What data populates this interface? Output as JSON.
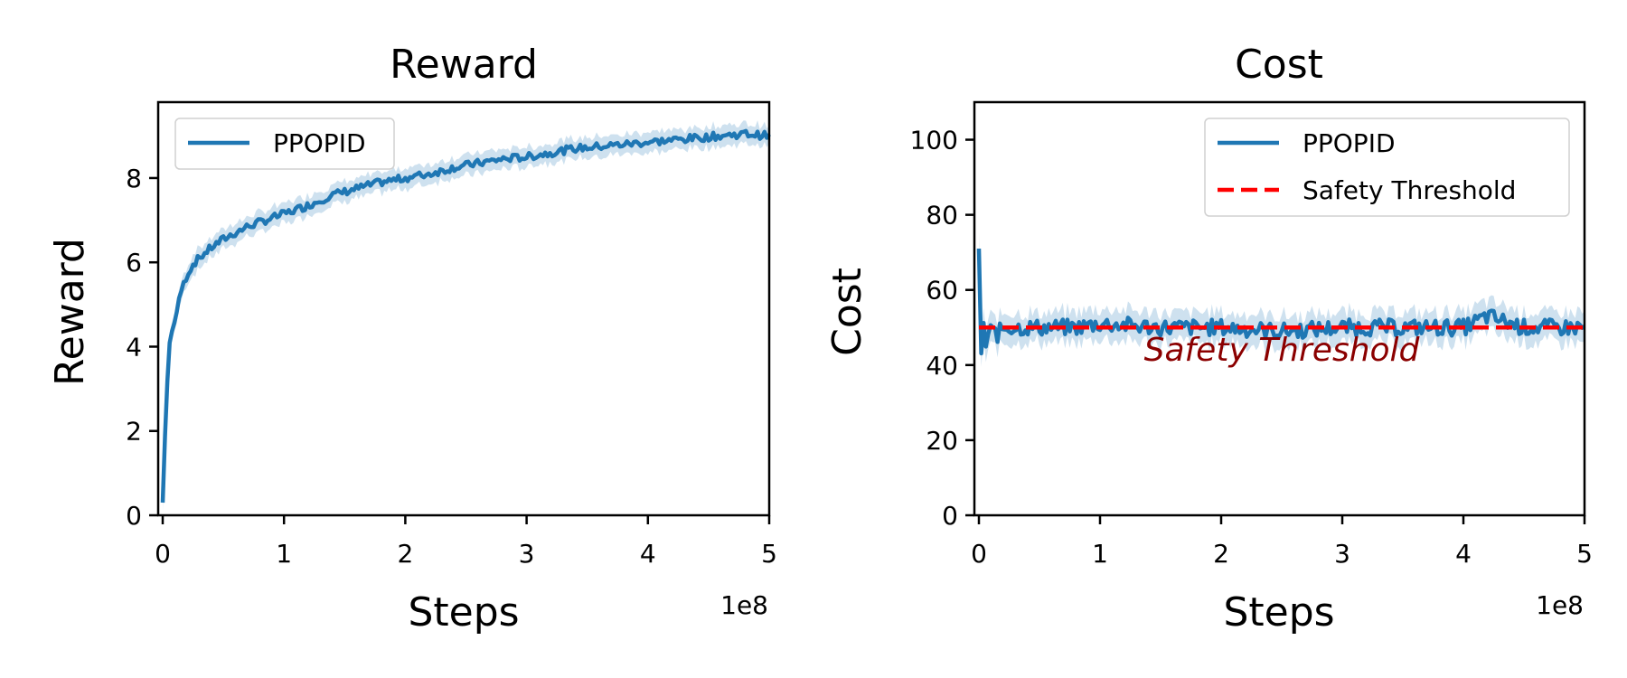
{
  "chart_data": [
    {
      "type": "line",
      "title": "Reward",
      "xlabel": "Steps",
      "ylabel": "Reward",
      "x_offset_label": "1e8",
      "xlim": [
        0,
        5
      ],
      "ylim": [
        0,
        9.8
      ],
      "xticks": [
        "0",
        "1",
        "2",
        "3",
        "4",
        "5"
      ],
      "yticks": [
        "0",
        "2",
        "4",
        "6",
        "8"
      ],
      "legend": {
        "placement": "upper-left",
        "entries": [
          "PPOPID"
        ]
      },
      "series": [
        {
          "name": "PPOPID",
          "color": "#1f77b4",
          "style": "solid",
          "x": [
            0.0,
            0.03,
            0.06,
            0.1,
            0.15,
            0.2,
            0.25,
            0.3,
            0.4,
            0.5,
            0.6,
            0.7,
            0.8,
            0.9,
            1.0,
            1.2,
            1.4,
            1.6,
            1.8,
            2.0,
            2.2,
            2.4,
            2.6,
            2.8,
            3.0,
            3.2,
            3.4,
            3.6,
            3.8,
            4.0,
            4.2,
            4.4,
            4.6,
            4.8,
            5.0
          ],
          "y": [
            0.3,
            2.8,
            4.2,
            4.6,
            5.3,
            5.7,
            5.95,
            6.1,
            6.35,
            6.55,
            6.7,
            6.85,
            6.95,
            7.05,
            7.15,
            7.35,
            7.6,
            7.75,
            7.9,
            8.0,
            8.1,
            8.25,
            8.35,
            8.45,
            8.5,
            8.6,
            8.7,
            8.75,
            8.8,
            8.85,
            8.9,
            8.95,
            9.0,
            9.05,
            9.0
          ]
        }
      ]
    },
    {
      "type": "line",
      "title": "Cost",
      "xlabel": "Steps",
      "ylabel": "Cost",
      "x_offset_label": "1e8",
      "xlim": [
        0,
        5
      ],
      "ylim": [
        0,
        110
      ],
      "xticks": [
        "0",
        "1",
        "2",
        "3",
        "4",
        "5"
      ],
      "yticks": [
        "0",
        "20",
        "40",
        "60",
        "80",
        "100"
      ],
      "legend": {
        "placement": "upper-right",
        "entries": [
          "PPOPID",
          "Safety Threshold"
        ]
      },
      "series": [
        {
          "name": "PPOPID",
          "color": "#1f77b4",
          "style": "solid",
          "x": [
            0.0,
            0.02,
            0.04,
            0.06,
            0.08,
            0.1,
            0.15,
            0.2,
            0.3,
            0.5,
            0.8,
            1.0,
            1.5,
            2.0,
            2.5,
            3.0,
            3.5,
            4.0,
            4.2,
            4.5,
            5.0
          ],
          "y": [
            71,
            42,
            52,
            44,
            49,
            51,
            48,
            50,
            50,
            50,
            50,
            51,
            50,
            50,
            49,
            50,
            50,
            50,
            53,
            50,
            50
          ]
        },
        {
          "name": "Safety Threshold",
          "color": "#ff0000",
          "style": "dashed",
          "x": [
            0,
            5
          ],
          "y": [
            50,
            50
          ]
        }
      ],
      "annotation": {
        "text": "Safety Threshold",
        "x": 2.5,
        "y": 45.5,
        "color": "#8b0000"
      }
    }
  ]
}
